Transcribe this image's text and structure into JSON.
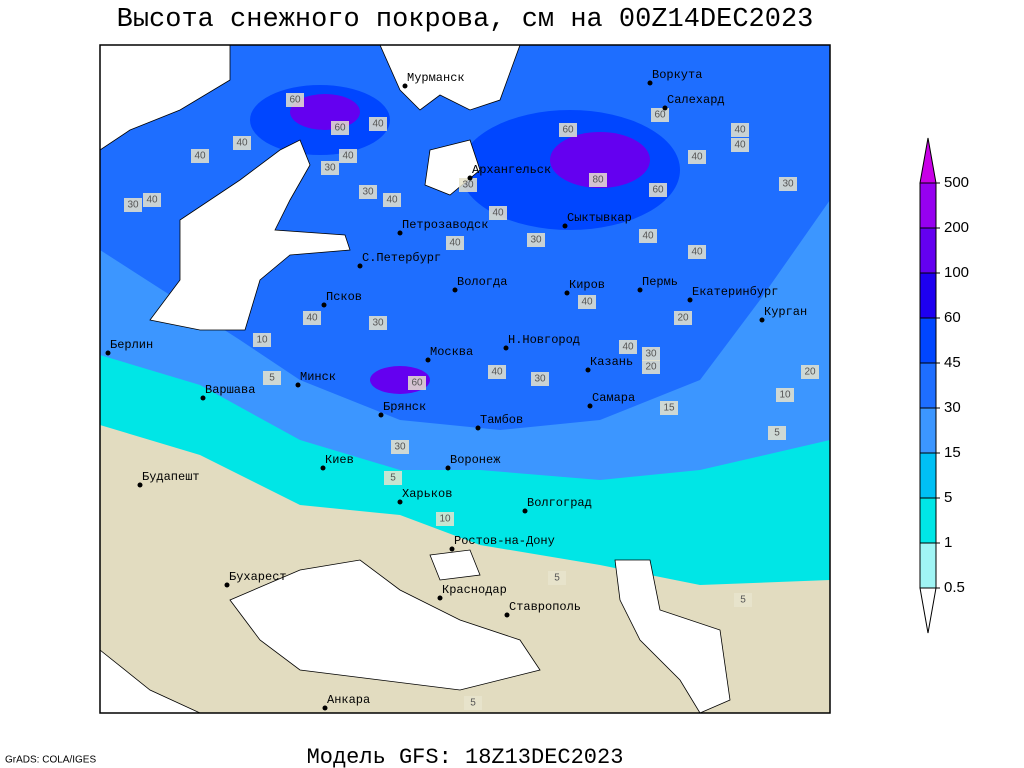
{
  "header": {
    "title": "Высота снежного покрова, см на 00Z14DEC2023"
  },
  "footer": {
    "model": "Модель GFS: 18Z13DEC2023",
    "credit": "GrADS: COLA/IGES"
  },
  "cities": [
    "Мурманск",
    "Воркута",
    "Салехард",
    "Архангельск",
    "Петрозаводск",
    "Сыктывкар",
    "С.Петербург",
    "Вологда",
    "Киров",
    "Пермь",
    "Екатеринбург",
    "Курган",
    "Псков",
    "Берлин",
    "Москва",
    "Н.Новгород",
    "Казань",
    "Минск",
    "Варшава",
    "Брянск",
    "Самара",
    "Тамбов",
    "Киев",
    "Воронеж",
    "Будапешт",
    "Харьков",
    "Волгоград",
    "Ростов-на-Дону",
    "Бухарест",
    "Краснодар",
    "Ставрополь",
    "Анкара"
  ],
  "contour_labels": [
    60,
    60,
    40,
    40,
    40,
    30,
    40,
    30,
    40,
    30,
    40,
    30,
    40,
    40,
    30,
    40,
    60,
    40,
    40,
    40,
    80,
    60,
    30,
    40,
    60,
    20,
    40,
    10,
    30,
    40,
    40,
    30,
    20,
    60,
    40,
    30,
    10,
    20,
    5,
    15,
    30,
    5,
    10,
    5,
    5,
    5,
    5
  ],
  "legend": {
    "levels": [
      0.5,
      1,
      5,
      15,
      30,
      45,
      60,
      100,
      200,
      500
    ],
    "colors": [
      "#ffffff",
      "#a0f5f5",
      "#00e6e6",
      "#00c0f5",
      "#3c96ff",
      "#1e6eff",
      "#0046ff",
      "#1e00f0",
      "#6400f0",
      "#9600f0",
      "#c800e6"
    ]
  }
}
